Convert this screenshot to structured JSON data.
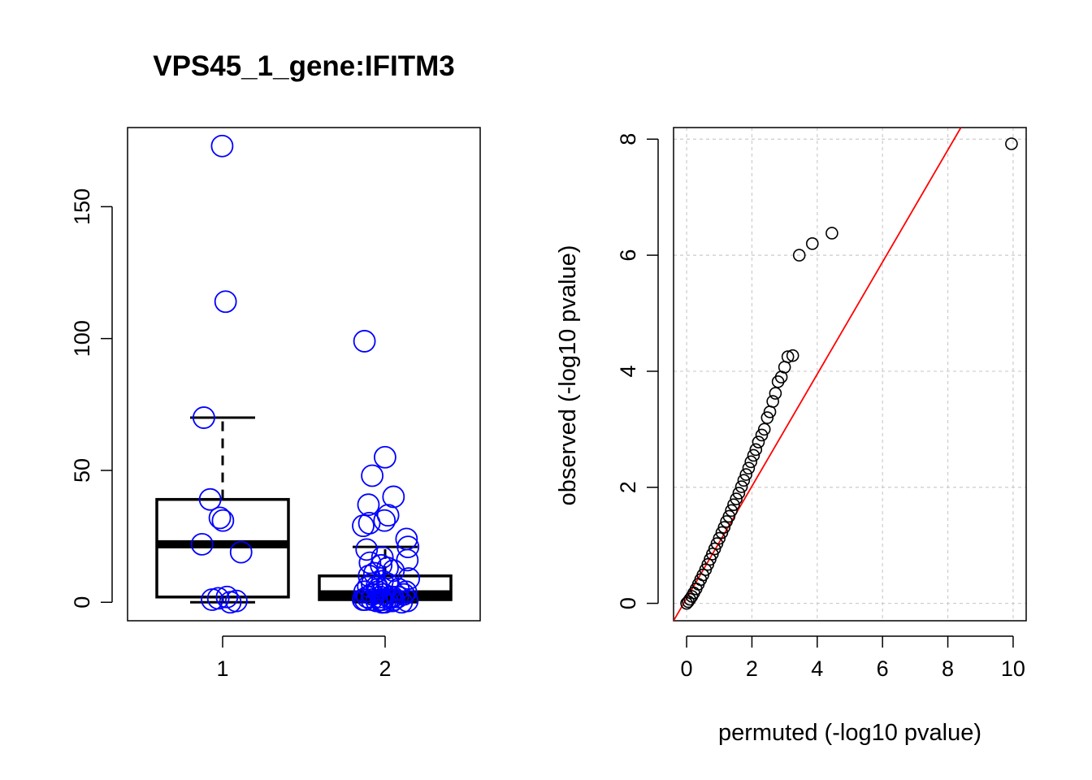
{
  "chart_data": [
    {
      "type": "box",
      "title": "VPS45_1_gene:IFITM3",
      "xlabel": "",
      "ylabel": "",
      "categories": [
        "1",
        "2"
      ],
      "ylim": [
        -7,
        180
      ],
      "y_ticks": [
        0,
        50,
        100,
        150
      ],
      "box_color": "#000000",
      "point_color": "#0000ff",
      "boxes": [
        {
          "category": "1",
          "min": 0,
          "q1": 2,
          "median": 22,
          "q3": 39,
          "max": 70
        },
        {
          "category": "2",
          "min": 0,
          "q1": 1,
          "median": 3,
          "q3": 10,
          "max": 21
        }
      ],
      "points": [
        {
          "category": "1",
          "values": [
            173,
            114,
            70,
            39,
            32,
            31,
            22,
            19,
            2,
            1.5,
            1,
            0.5,
            0
          ]
        },
        {
          "category": "2",
          "values": [
            99,
            55,
            48,
            40,
            37,
            33,
            31,
            30,
            29,
            24,
            21,
            20,
            17,
            16,
            15,
            14,
            13,
            12,
            11,
            10,
            9,
            8,
            7,
            7,
            6,
            6,
            5,
            5,
            4,
            4,
            4,
            3,
            3,
            3,
            3,
            2,
            2,
            2,
            2,
            2,
            1,
            1,
            1,
            1,
            1,
            1,
            0.5,
            0.5,
            0.5,
            0,
            0,
            0,
            0,
            0,
            0
          ]
        }
      ]
    },
    {
      "type": "scatter",
      "title": "",
      "xlabel": "permuted (-log10 pvalue)",
      "ylabel": "observed (-log10 pvalue)",
      "xlim": [
        -0.4,
        10.4
      ],
      "ylim": [
        -0.3,
        8.2
      ],
      "x_ticks": [
        0,
        2,
        4,
        6,
        8,
        10
      ],
      "y_ticks": [
        0,
        2,
        4,
        6,
        8
      ],
      "grid": true,
      "point_color": "#000000",
      "reference_line": {
        "color": "#ff0000",
        "x": [
          -0.4,
          8.4
        ],
        "y": [
          -0.3,
          8.2
        ]
      },
      "points_x": [
        9.95,
        4.45,
        3.85,
        3.45,
        3.25,
        3.1,
        3.0,
        2.9,
        2.8,
        2.72,
        2.64,
        2.55,
        2.47,
        2.38,
        2.3,
        2.2,
        2.12,
        2.05,
        1.97,
        1.9,
        1.82,
        1.75,
        1.68,
        1.6,
        1.52,
        1.44,
        1.37,
        1.3,
        1.22,
        1.15,
        1.08,
        1.0,
        0.93,
        0.86,
        0.79,
        0.72,
        0.65,
        0.58,
        0.5,
        0.43,
        0.36,
        0.29,
        0.22,
        0.16,
        0.1,
        0.05,
        0.0
      ],
      "points_y": [
        7.92,
        6.38,
        6.2,
        6.0,
        4.27,
        4.25,
        4.07,
        3.9,
        3.82,
        3.62,
        3.48,
        3.3,
        3.2,
        3.0,
        2.9,
        2.78,
        2.65,
        2.55,
        2.44,
        2.33,
        2.22,
        2.12,
        2.01,
        1.9,
        1.8,
        1.7,
        1.6,
        1.5,
        1.41,
        1.31,
        1.22,
        1.12,
        1.03,
        0.94,
        0.85,
        0.76,
        0.67,
        0.58,
        0.49,
        0.41,
        0.33,
        0.25,
        0.18,
        0.12,
        0.07,
        0.03,
        0.0
      ]
    }
  ]
}
